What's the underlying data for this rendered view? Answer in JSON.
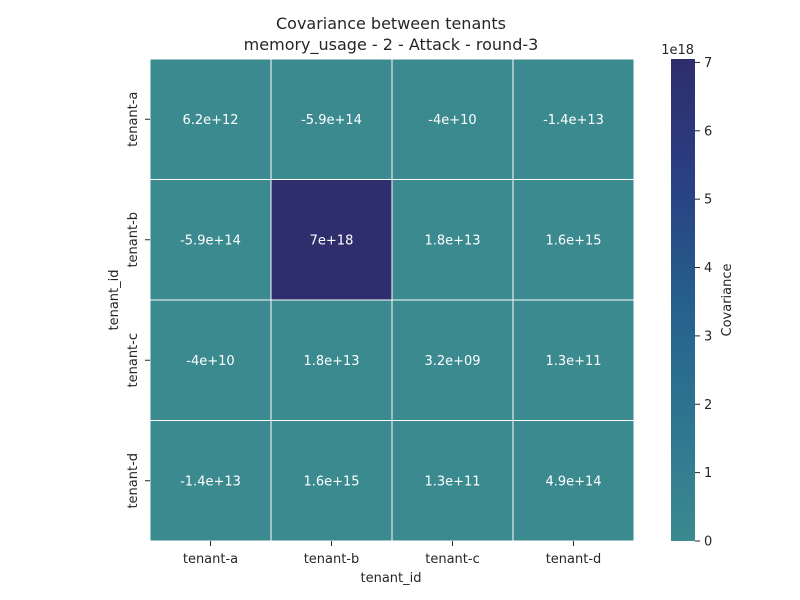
{
  "chart_data": {
    "type": "heatmap",
    "title_line1": "Covariance between tenants",
    "title_line2": "memory_usage - 2 - Attack - round-3",
    "xlabel": "tenant_id",
    "ylabel": "tenant_id",
    "x_categories": [
      "tenant-a",
      "tenant-b",
      "tenant-c",
      "tenant-d"
    ],
    "y_categories": [
      "tenant-a",
      "tenant-b",
      "tenant-c",
      "tenant-d"
    ],
    "values": [
      [
        6200000000000.0,
        -590000000000000.0,
        -40000000000.0,
        -14000000000000.0
      ],
      [
        -590000000000000.0,
        7e+18,
        18000000000000.0,
        1600000000000000.0
      ],
      [
        -40000000000.0,
        18000000000000.0,
        3200000000.0,
        130000000000.0
      ],
      [
        -14000000000000.0,
        1600000000000000.0,
        130000000000.0,
        490000000000000.0
      ]
    ],
    "cell_labels": [
      [
        "6.2e+12",
        "-5.9e+14",
        "-4e+10",
        "-1.4e+13"
      ],
      [
        "-5.9e+14",
        "7e+18",
        "1.8e+13",
        "1.6e+15"
      ],
      [
        "-4e+10",
        "1.8e+13",
        "3.2e+09",
        "1.3e+11"
      ],
      [
        "-1.4e+13",
        "1.6e+15",
        "1.3e+11",
        "4.9e+14"
      ]
    ],
    "colorbar": {
      "label": "Covariance",
      "offset_text": "1e18",
      "scale": 1e+18,
      "range": [
        0,
        7.05e+18
      ],
      "ticks": [
        0,
        1,
        2,
        3,
        4,
        5,
        6,
        7
      ],
      "colormap": [
        "#3a8a8f",
        "#2e7590",
        "#255f8c",
        "#2a3f82",
        "#2e2d6c"
      ]
    },
    "grid": false,
    "legend": "colorbar-right"
  }
}
